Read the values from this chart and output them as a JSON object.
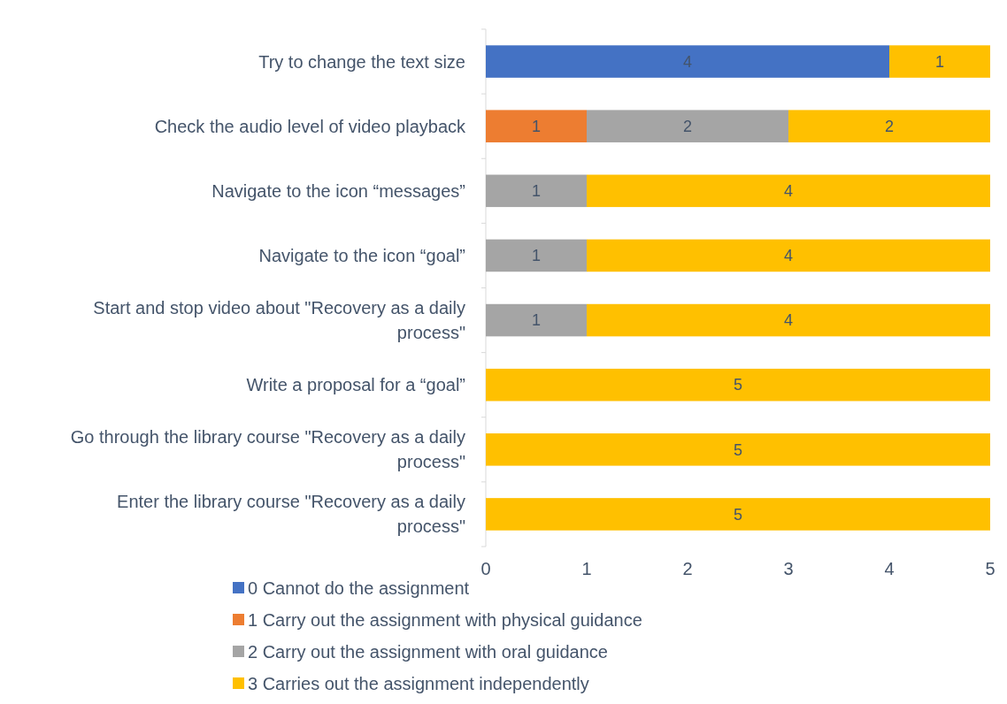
{
  "chart_data": {
    "type": "bar",
    "orientation": "horizontal",
    "stacked": true,
    "data_labels": true,
    "legend": "bottom",
    "grid": false,
    "categories": [
      "Try to change the text size",
      "Check the audio level of video playback",
      "Navigate to the icon “messages”",
      "Navigate to the icon “goal”",
      "Start and stop video about \"Recovery as a daily process\"",
      "Write a proposal for a “goal”",
      "Go through the library course \"Recovery as a daily process\"",
      "Enter the library course \"Recovery as a daily process\""
    ],
    "xlim": [
      0,
      5
    ],
    "xticks": [
      0,
      1,
      2,
      3,
      4,
      5
    ],
    "series": [
      {
        "name": "0 Cannot do the assignment",
        "color": "#4472c4",
        "values": [
          4,
          null,
          null,
          null,
          null,
          null,
          null,
          null
        ]
      },
      {
        "name": "1 Carry out the assignment with physical guidance",
        "color": "#ed7d31",
        "values": [
          null,
          1,
          null,
          null,
          null,
          null,
          null,
          null
        ]
      },
      {
        "name": "2 Carry out the assignment with oral guidance",
        "color": "#a5a5a5",
        "values": [
          null,
          2,
          1,
          1,
          1,
          null,
          null,
          null
        ]
      },
      {
        "name": "3 Carries out the assignment independently",
        "color": "#ffc000",
        "values": [
          1,
          2,
          4,
          4,
          4,
          5,
          5,
          5
        ]
      }
    ]
  }
}
